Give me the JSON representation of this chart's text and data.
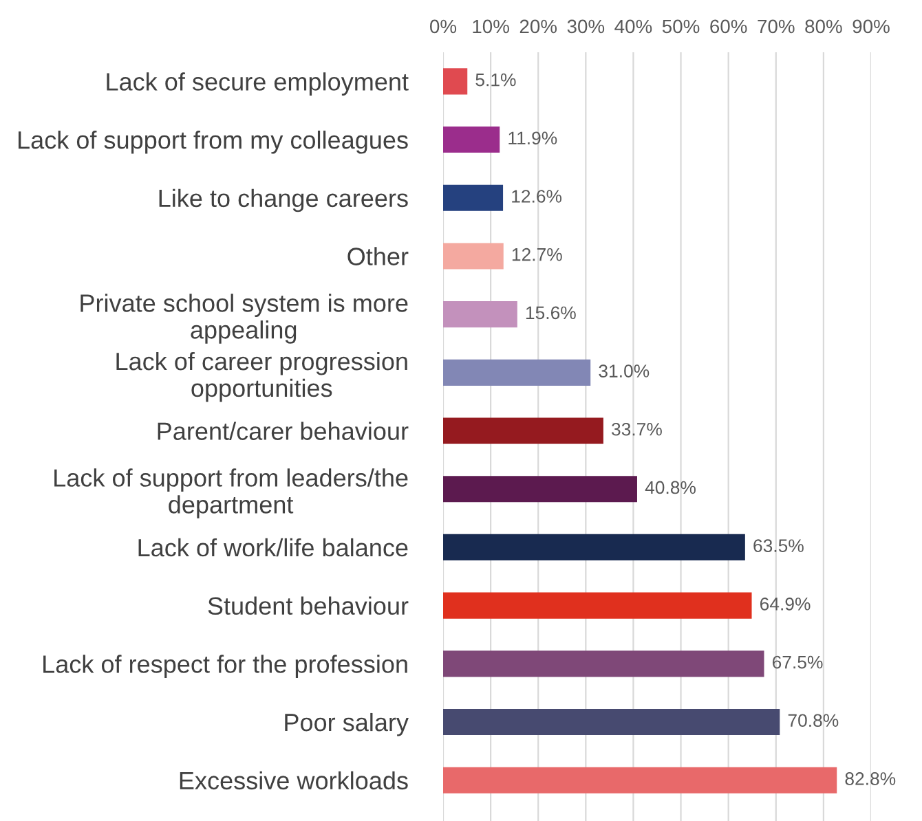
{
  "chart_data": {
    "type": "bar",
    "orientation": "horizontal",
    "categories": [
      "Lack of secure employment",
      "Lack of support from my colleagues",
      "Like to change careers",
      "Other",
      "Private school system is more\nappealing",
      "Lack of career progression\nopportunities",
      "Parent/carer behaviour",
      "Lack of support from leaders/the\ndepartment",
      "Lack of work/life balance",
      "Student behaviour",
      "Lack of respect for the profession",
      "Poor salary",
      "Excessive workloads"
    ],
    "values": [
      5.1,
      11.9,
      12.6,
      12.7,
      15.6,
      31.0,
      33.7,
      40.8,
      63.5,
      64.9,
      67.5,
      70.8,
      82.8
    ],
    "value_labels": [
      "5.1%",
      "11.9%",
      "12.6%",
      "12.7%",
      "15.6%",
      "31.0%",
      "33.7%",
      "40.8%",
      "63.5%",
      "64.9%",
      "67.5%",
      "70.8%",
      "82.8%"
    ],
    "colors": [
      "#e04a50",
      "#9b2d8c",
      "#25417f",
      "#f4a9a0",
      "#c391bc",
      "#8287b5",
      "#951a1f",
      "#5c1a4f",
      "#182a50",
      "#e0301e",
      "#7f4878",
      "#474a70",
      "#e8696a"
    ],
    "xlim": [
      0,
      90
    ],
    "xticks": [
      {
        "value": 0,
        "label": "0%"
      },
      {
        "value": 10,
        "label": "10%"
      },
      {
        "value": 20,
        "label": "20%"
      },
      {
        "value": 30,
        "label": "30%"
      },
      {
        "value": 40,
        "label": "40%"
      },
      {
        "value": 50,
        "label": "50%"
      },
      {
        "value": 60,
        "label": "60%"
      },
      {
        "value": 70,
        "label": "70%"
      },
      {
        "value": 80,
        "label": "80%"
      },
      {
        "value": 90,
        "label": "90%"
      }
    ],
    "grid": "x",
    "legend": false
  }
}
